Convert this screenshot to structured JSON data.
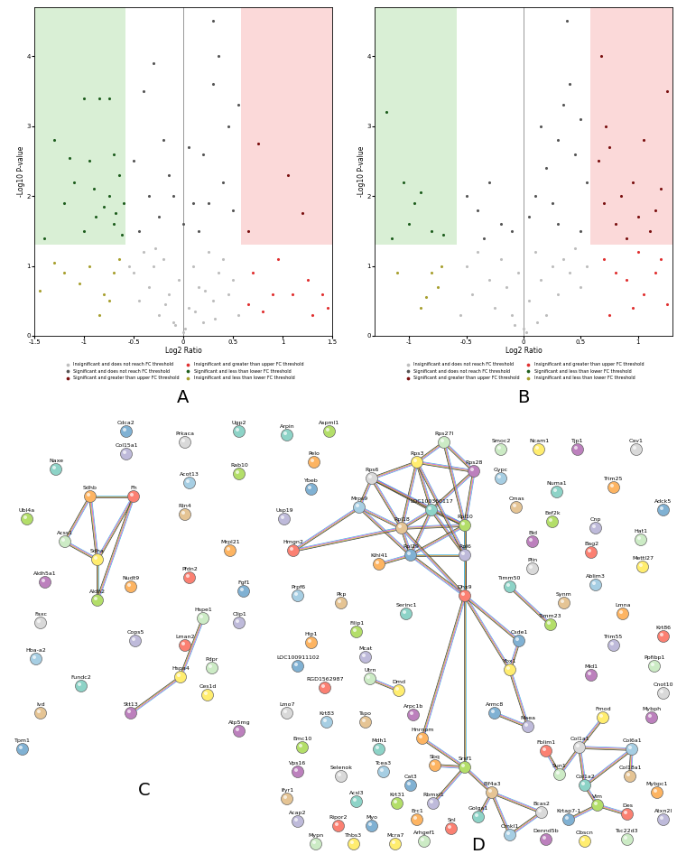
{
  "chart_data": [
    {
      "type": "scatter",
      "title": "A",
      "x_label": "Log2 Ratio",
      "y_label": "-Log10 P-value",
      "xlim": [
        -1.5,
        1.5
      ],
      "xticks": [
        -1.5,
        -1,
        -0.5,
        0,
        0.5,
        1,
        1.5
      ],
      "ylim": [
        0,
        4.7
      ],
      "yticks": [
        0,
        1,
        2,
        3,
        4
      ],
      "grid": false,
      "legend": "upper center",
      "regions": [
        {
          "xlim": [
            -1.5,
            -0.585
          ],
          "ylim": [
            1.301,
            4.7
          ],
          "color": "#d9efd5"
        },
        {
          "xlim": [
            0.585,
            1.5
          ],
          "ylim": [
            1.301,
            4.7
          ],
          "color": "#fbd9d9"
        }
      ],
      "series": [
        {
          "name": "Insignificant and does not reach FC threshold",
          "color": "#bdbdbd",
          "x": [
            -0.5,
            -0.45,
            -0.4,
            -0.35,
            -0.3,
            -0.25,
            -0.2,
            -0.15,
            -0.1,
            -0.05,
            0.0,
            0.05,
            0.1,
            0.15,
            0.2,
            0.25,
            0.3,
            0.35,
            0.4,
            0.45,
            0.5,
            0.55,
            -0.55,
            0.02,
            -0.08,
            0.12,
            -0.18,
            0.22,
            0.32,
            -0.28
          ],
          "values": [
            0.9,
            0.5,
            1.2,
            0.7,
            1.0,
            0.3,
            1.1,
            0.6,
            0.2,
            0.8,
            0.05,
            0.4,
            1.0,
            0.7,
            0.2,
            1.2,
            0.5,
            0.9,
            1.1,
            0.6,
            0.8,
            0.3,
            1.0,
            0.1,
            0.15,
            0.35,
            0.45,
            0.65,
            0.25,
            1.25
          ]
        },
        {
          "name": "Significant and does not reach FC threshold",
          "color": "#555555",
          "x": [
            -0.5,
            -0.4,
            -0.3,
            -0.2,
            -0.1,
            0.0,
            0.1,
            0.2,
            0.3,
            0.35,
            0.4,
            0.5,
            -0.45,
            -0.35,
            -0.25,
            0.15,
            0.25,
            0.45,
            0.3,
            -0.15,
            0.05,
            0.55
          ],
          "values": [
            2.5,
            3.5,
            3.9,
            2.8,
            2.0,
            1.6,
            1.9,
            2.6,
            3.6,
            4.0,
            2.2,
            1.8,
            1.5,
            2.0,
            1.7,
            1.5,
            1.9,
            3.0,
            4.5,
            2.3,
            2.7,
            3.3
          ]
        },
        {
          "name": "Significant and greater than upper FC threshold",
          "color": "#7a1010",
          "x": [
            0.75,
            1.05,
            1.2,
            0.65
          ],
          "values": [
            2.75,
            2.3,
            1.75,
            1.5
          ]
        },
        {
          "name": "Insignificant and greater than upper FC threshold",
          "color": "#e03030",
          "x": [
            0.7,
            0.9,
            1.1,
            1.25,
            0.8,
            1.4,
            0.95,
            1.3,
            0.65,
            1.45
          ],
          "values": [
            0.9,
            0.6,
            0.6,
            0.8,
            0.35,
            0.6,
            1.1,
            0.3,
            0.45,
            0.4
          ]
        },
        {
          "name": "Significant and less than lower FC threshold",
          "color": "#1e5e1e",
          "x": [
            -1.3,
            -1.0,
            -0.85,
            -0.75,
            -0.95,
            -0.7,
            -1.1,
            -0.9,
            -0.65,
            -1.2,
            -0.8,
            -0.7,
            -1.4,
            -1.0,
            -0.62,
            -0.75,
            -0.88,
            -1.15,
            -0.6,
            -0.68
          ],
          "values": [
            2.8,
            3.4,
            3.4,
            3.4,
            2.5,
            2.6,
            2.2,
            2.1,
            2.3,
            1.9,
            1.85,
            1.6,
            1.4,
            1.5,
            1.45,
            2.0,
            1.7,
            2.55,
            1.9,
            1.75
          ]
        },
        {
          "name": "Insignificant and less than lower FC threshold",
          "color": "#a8a030",
          "x": [
            -1.45,
            -1.2,
            -0.95,
            -0.8,
            -0.7,
            -1.05,
            -0.65,
            -0.85,
            -0.75,
            -1.3
          ],
          "values": [
            0.65,
            0.9,
            1.0,
            0.6,
            0.9,
            0.75,
            1.1,
            0.3,
            0.5,
            1.05
          ]
        }
      ]
    },
    {
      "type": "scatter",
      "title": "B",
      "x_label": "Log2 Ratio",
      "y_label": "-Log10 P-value",
      "xlim": [
        -1.3,
        1.3
      ],
      "xticks": [
        -1,
        -0.5,
        0,
        0.5,
        1
      ],
      "ylim": [
        0,
        4.7
      ],
      "yticks": [
        0,
        1,
        2,
        3,
        4
      ],
      "grid": false,
      "legend": "upper center",
      "regions": [
        {
          "xlim": [
            -1.3,
            -0.585
          ],
          "ylim": [
            1.301,
            4.7
          ],
          "color": "#d9efd5"
        },
        {
          "xlim": [
            0.585,
            1.3
          ],
          "ylim": [
            1.301,
            4.7
          ],
          "color": "#fbd9d9"
        }
      ],
      "series": [
        {
          "name": "Insignificant and does not reach FC threshold",
          "color": "#bdbdbd",
          "x": [
            -0.5,
            -0.45,
            -0.4,
            -0.3,
            -0.25,
            -0.2,
            -0.15,
            -0.1,
            -0.05,
            0.0,
            0.05,
            0.1,
            0.15,
            0.2,
            0.25,
            0.3,
            0.35,
            0.4,
            0.45,
            0.5,
            0.55,
            -0.55,
            0.02,
            -0.08,
            0.12
          ],
          "values": [
            1.0,
            0.6,
            1.2,
            0.8,
            0.4,
            1.1,
            0.7,
            0.3,
            0.9,
            0.1,
            0.5,
            1.2,
            0.8,
            0.3,
            1.0,
            0.6,
            1.1,
            0.9,
            1.25,
            0.7,
            1.0,
            0.3,
            0.05,
            0.15,
            0.2
          ]
        },
        {
          "name": "Significant and does not reach FC threshold",
          "color": "#555555",
          "x": [
            -0.5,
            -0.4,
            -0.3,
            -0.2,
            -0.1,
            0.05,
            0.1,
            0.2,
            0.3,
            0.35,
            0.4,
            0.45,
            0.5,
            0.55,
            0.25,
            0.15,
            0.38,
            0.5,
            -0.35,
            0.3
          ],
          "values": [
            2.0,
            1.8,
            2.2,
            1.6,
            1.5,
            1.7,
            2.0,
            2.4,
            2.8,
            3.3,
            3.6,
            2.6,
            3.1,
            2.2,
            1.9,
            3.0,
            4.5,
            1.5,
            1.4,
            1.6
          ]
        },
        {
          "name": "Significant and greater than upper FC threshold",
          "color": "#7a1010",
          "x": [
            0.65,
            0.7,
            0.75,
            0.8,
            0.85,
            0.9,
            0.95,
            1.0,
            1.05,
            1.1,
            1.2,
            1.25,
            0.68,
            0.72,
            1.15
          ],
          "values": [
            2.5,
            1.9,
            2.7,
            1.6,
            2.0,
            1.4,
            2.2,
            1.7,
            2.8,
            1.5,
            2.1,
            3.5,
            4.0,
            3.0,
            1.8
          ]
        },
        {
          "name": "Insignificant and greater than upper FC threshold",
          "color": "#e03030",
          "x": [
            0.7,
            0.8,
            0.9,
            1.0,
            1.05,
            1.15,
            1.25,
            0.75,
            0.95,
            1.2
          ],
          "values": [
            1.1,
            0.9,
            0.8,
            1.2,
            0.6,
            0.9,
            0.45,
            0.3,
            0.4,
            1.1
          ]
        },
        {
          "name": "Significant and less than lower FC threshold",
          "color": "#1e5e1e",
          "x": [
            -1.2,
            -1.05,
            -0.95,
            -0.9,
            -1.0,
            -0.8,
            -0.7,
            -1.15
          ],
          "values": [
            3.2,
            2.2,
            1.9,
            2.05,
            1.6,
            1.5,
            1.45,
            1.4
          ]
        },
        {
          "name": "Insignificant and less than lower FC threshold",
          "color": "#a8a030",
          "x": [
            -0.8,
            -0.75,
            -0.85,
            -0.72,
            -0.9,
            -1.1
          ],
          "values": [
            0.9,
            0.7,
            0.55,
            1.0,
            0.4,
            0.9
          ]
        }
      ]
    }
  ],
  "networks": [
    {
      "label": "C",
      "nodes": [
        "Naxe",
        "Ubl4a",
        "Sdhb",
        "Cdca2",
        "Col15a1",
        "Fh",
        "Acss1",
        "Sdha",
        "Aldh5a1",
        "Faxc",
        "Hba-a2",
        "Ivd",
        "Fundc2",
        "Aldh2",
        "Nudt9",
        "Tpm1",
        "Cops5",
        "Pfdn2",
        "Hspe1",
        "Hspa4",
        "Stt13",
        "Prkaca",
        "Acot13",
        "Rtn4",
        "Ugp2",
        "Rab10",
        "Mrpl21",
        "Fgf1",
        "Clip1",
        "Lman2",
        "Pdpr",
        "Ces1d",
        "Atp5mg"
      ],
      "edges": [
        [
          "Sdhb",
          "Fh"
        ],
        [
          "Sdhb",
          "Sdha"
        ],
        [
          "Sdha",
          "Fh"
        ],
        [
          "Sdhb",
          "Acss1"
        ],
        [
          "Acss1",
          "Sdha"
        ],
        [
          "Sdha",
          "Aldh2"
        ],
        [
          "Fh",
          "Aldh2"
        ],
        [
          "Hspe1",
          "Hspa4"
        ],
        [
          "Hspa4",
          "Stt13"
        ]
      ]
    },
    {
      "label": "D",
      "nodes": [
        "Arpin",
        "Aspml1",
        "Pelo",
        "Ybeb",
        "Usp19",
        "Hmgn2",
        "Rps27l",
        "Rps3",
        "Rps28",
        "Rps6",
        "Mrps9",
        "Rpl18",
        "LOC100360117",
        "Rpl10",
        "Klhl41",
        "Rpl29",
        "Rpl6",
        "Dhx9",
        "Smoc2",
        "Ncam1",
        "Tjp1",
        "Cav1",
        "Gypc",
        "Cmas",
        "Numa1",
        "Eef2k",
        "Trim25",
        "Adck5",
        "Cnp",
        "Bag2",
        "Hat1",
        "Mettl27",
        "Bid",
        "Plin",
        "Ablim3",
        "Synm",
        "Timm50",
        "Timm23",
        "Lmna",
        "Csde1",
        "Trim55",
        "Krt86",
        "Ppfibp1",
        "Ybx1",
        "Mid1",
        "Cnot10",
        "Prpf6",
        "Pkp",
        "Serinc1",
        "Filip1",
        "Hip1",
        "LOC100911102",
        "Mcat",
        "RGD1562987",
        "Utrn",
        "Dmd",
        "Arpc1b",
        "Lmo7",
        "Krt83",
        "Tspo",
        "Mdh1",
        "Emc10",
        "Hnrnpm",
        "Armc8",
        "Maea",
        "Fblim1",
        "Sun1",
        "Fmod",
        "Mybph",
        "Col1a1",
        "Col6a1",
        "Col18a1",
        "Col1a2",
        "Vim",
        "Mybpc1",
        "Krtap7-1",
        "Atxn2l",
        "Des",
        "Tsc22d3",
        "Obscn",
        "Dennd5b",
        "Bcas2",
        "Crnkl1",
        "Eif4a3",
        "Golga1",
        "Srsf1",
        "Sbq",
        "Cat3",
        "Rbmxl1",
        "Snl",
        "Arhgef1",
        "Mcra7",
        "Vps16",
        "Selenok",
        "Tcea3",
        "Ifyr1",
        "Acsl3",
        "Krt31",
        "Erc1",
        "Myo",
        "Acap2",
        "Ripor2",
        "Mypn",
        "Thbs3"
      ],
      "edges": [
        [
          "Rps27l",
          "Rps3"
        ],
        [
          "Rps27l",
          "Rps28"
        ],
        [
          "Rps3",
          "Rps28"
        ],
        [
          "Rps3",
          "Rps6"
        ],
        [
          "Rps6",
          "Mrps9"
        ],
        [
          "Rps6",
          "Rpl18"
        ],
        [
          "Rps3",
          "Rpl18"
        ],
        [
          "Rps3",
          "LOC100360117"
        ],
        [
          "Rps28",
          "LOC100360117"
        ],
        [
          "Rps28",
          "Rpl10"
        ],
        [
          "Rps27l",
          "Rpl10"
        ],
        [
          "Rps6",
          "LOC100360117"
        ],
        [
          "Mrps9",
          "Rpl18"
        ],
        [
          "Mrps9",
          "Rpl29"
        ],
        [
          "Rpl18",
          "LOC100360117"
        ],
        [
          "Rpl18",
          "Rpl29"
        ],
        [
          "Rpl18",
          "Rpl10"
        ],
        [
          "LOC100360117",
          "Rpl10"
        ],
        [
          "LOC100360117",
          "Rpl29"
        ],
        [
          "LOC100360117",
          "Rpl6"
        ],
        [
          "Rpl10",
          "Rpl6"
        ],
        [
          "Rpl29",
          "Rpl6"
        ],
        [
          "Rpl10",
          "Rpl29"
        ],
        [
          "Rps6",
          "Rpl10"
        ],
        [
          "Rps3",
          "Rpl6"
        ],
        [
          "Hmgn2",
          "Mrps9"
        ],
        [
          "Hmgn2",
          "Rpl18"
        ],
        [
          "Klhl41",
          "Rpl29"
        ],
        [
          "Dhx9",
          "Rpl6"
        ],
        [
          "Dhx9",
          "Rpl29"
        ],
        [
          "Dhx9",
          "Rpl10"
        ],
        [
          "Dhx9",
          "Rpl18"
        ],
        [
          "Dhx9",
          "Ybx1"
        ],
        [
          "Dhx9",
          "Csde1"
        ],
        [
          "Dhx9",
          "Hnrnpm"
        ],
        [
          "Dhx9",
          "Srsf1"
        ],
        [
          "Ybx1",
          "Csde1"
        ],
        [
          "Ybx1",
          "Maea"
        ],
        [
          "Armc8",
          "Maea"
        ],
        [
          "Utrn",
          "Dmd"
        ],
        [
          "Timm50",
          "Timm23"
        ],
        [
          "Hnrnpm",
          "Srsf1"
        ],
        [
          "Srsf1",
          "Sbq"
        ],
        [
          "Srsf1",
          "Rbmxl1"
        ],
        [
          "Srsf1",
          "Eif4a3"
        ],
        [
          "Eif4a3",
          "Golga1"
        ],
        [
          "Eif4a3",
          "Bcas2"
        ],
        [
          "Eif4a3",
          "Crnkl1"
        ],
        [
          "Bcas2",
          "Crnkl1"
        ],
        [
          "Col1a1",
          "Col1a2"
        ],
        [
          "Col1a1",
          "Col6a1"
        ],
        [
          "Col1a2",
          "Col6a1"
        ],
        [
          "Col6a1",
          "Col18a1"
        ],
        [
          "Col1a1",
          "Fmod"
        ],
        [
          "Col1a1",
          "Sun1"
        ],
        [
          "Sun1",
          "Fblim1"
        ],
        [
          "Col1a2",
          "Vim"
        ],
        [
          "Vim",
          "Des"
        ],
        [
          "Vim",
          "Krtap7-1"
        ]
      ]
    }
  ]
}
